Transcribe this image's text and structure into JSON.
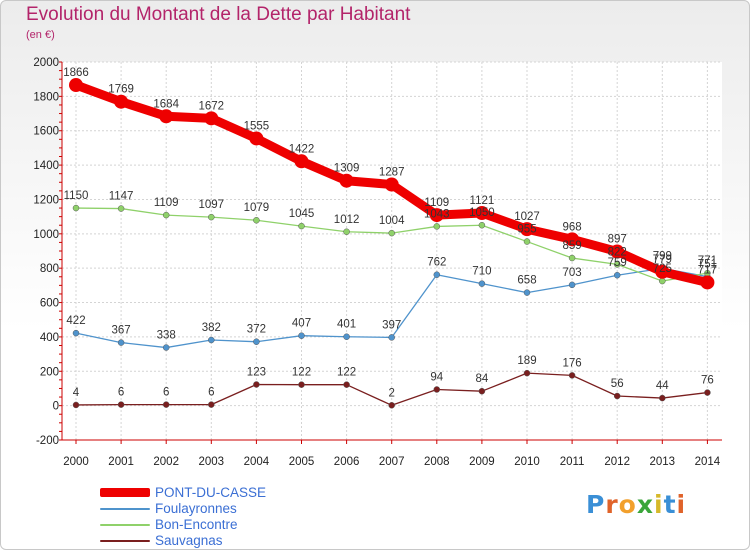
{
  "title": "Evolution du Montant de la Dette par Habitant",
  "subtitle": "(en €)",
  "logo": {
    "text": "Proxiti",
    "letters": [
      {
        "ch": "P",
        "color": "#3a8fd6"
      },
      {
        "ch": "r",
        "color": "#e0632a"
      },
      {
        "ch": "o",
        "color": "#f2a02c"
      },
      {
        "ch": "x",
        "color": "#3aa63a"
      },
      {
        "ch": "i",
        "color": "#d6b92a"
      },
      {
        "ch": "t",
        "color": "#3a8fd6"
      },
      {
        "ch": "i",
        "color": "#e0632a"
      }
    ]
  },
  "chart_data": {
    "type": "line",
    "title": "Evolution du Montant de la Dette par Habitant",
    "subtitle": "(en €)",
    "x": [
      "2000",
      "2001",
      "2002",
      "2003",
      "2004",
      "2005",
      "2006",
      "2007",
      "2008",
      "2009",
      "2010",
      "2011",
      "2012",
      "2013",
      "2014"
    ],
    "ylim": [
      -200,
      2000
    ],
    "yticks": [
      -200,
      0,
      200,
      400,
      600,
      800,
      1000,
      1200,
      1400,
      1600,
      1800,
      2000
    ],
    "grid": true,
    "legend": "bottom-left",
    "series": [
      {
        "name": "PONT-DU-CASSE",
        "color": "#ee0000",
        "values": [
          1866,
          1769,
          1684,
          1672,
          1555,
          1422,
          1309,
          1287,
          1109,
          1121,
          1027,
          968,
          897,
          779,
          717
        ],
        "labels": [
          "1866",
          "1769",
          "1684",
          "1672",
          "1555",
          "1422",
          "1309",
          "1287",
          "1109",
          "1121",
          "1027",
          "968",
          "897",
          "779",
          "717"
        ]
      },
      {
        "name": "Foulayronnes",
        "color": "#4f93cc",
        "values": [
          422,
          367,
          338,
          382,
          372,
          407,
          401,
          397,
          762,
          710,
          658,
          703,
          759,
          799,
          751
        ],
        "labels": [
          "422",
          "367",
          "338",
          "382",
          "372",
          "407",
          "401",
          "397",
          "762",
          "710",
          "658",
          "703",
          "759",
          "799",
          "751"
        ]
      },
      {
        "name": "Bon-Encontre",
        "color": "#8fd16a",
        "values": [
          1150,
          1147,
          1109,
          1097,
          1079,
          1045,
          1012,
          1004,
          1043,
          1050,
          955,
          859,
          822,
          725,
          771
        ],
        "labels": [
          "1150",
          "1147",
          "1109",
          "1097",
          "1079",
          "1045",
          "1012",
          "1004",
          "1043",
          "1050",
          "955",
          "859",
          "822",
          "725",
          "771"
        ]
      },
      {
        "name": "Sauvagnas",
        "color": "#7a1f1f",
        "values": [
          4,
          6,
          6,
          6,
          123,
          122,
          122,
          2,
          94,
          84,
          189,
          176,
          56,
          44,
          76
        ],
        "labels": [
          "4",
          "6",
          "6",
          "6",
          "123",
          "122",
          "122",
          "2",
          "94",
          "84",
          "189",
          "176",
          "56",
          "44",
          "76"
        ]
      }
    ]
  }
}
